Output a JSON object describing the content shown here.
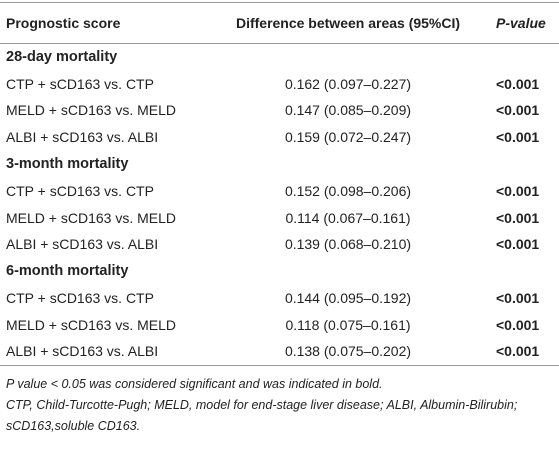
{
  "header": [
    "Prognostic score",
    "Difference between areas (95%CI)",
    "P-value"
  ],
  "sections": [
    {
      "title": "28-day mortality",
      "rows": [
        [
          "CTP + sCD163 vs. CTP",
          "0.162 (0.097–0.227)",
          "<0.001"
        ],
        [
          "MELD + sCD163 vs. MELD",
          "0.147 (0.085–0.209)",
          "<0.001"
        ],
        [
          "ALBI + sCD163 vs. ALBI",
          "0.159 (0.072–0.247)",
          "<0.001"
        ]
      ]
    },
    {
      "title": "3-month mortality",
      "rows": [
        [
          "CTP + sCD163 vs. CTP",
          "0.152 (0.098–0.206)",
          "<0.001"
        ],
        [
          "MELD + sCD163 vs. MELD",
          "0.114 (0.067–0.161)",
          "<0.001"
        ],
        [
          "ALBI + sCD163 vs. ALBI",
          "0.139 (0.068–0.210)",
          "<0.001"
        ]
      ]
    },
    {
      "title": "6-month mortality",
      "rows": [
        [
          "CTP + sCD163 vs. CTP",
          "0.144 (0.095–0.192)",
          "<0.001"
        ],
        [
          "MELD + sCD163 vs. MELD",
          "0.118 (0.075–0.161)",
          "<0.001"
        ],
        [
          "ALBI + sCD163 vs. ALBI",
          "0.138 (0.075–0.202)",
          "<0.001"
        ]
      ]
    }
  ],
  "footnotes": [
    "P value < 0.05 was considered significant and was indicated in bold.",
    "CTP, Child-Turcotte-Pugh; MELD, model for end-stage liver disease; ALBI, Albumin-Bilirubin; sCD163,soluble CD163."
  ]
}
